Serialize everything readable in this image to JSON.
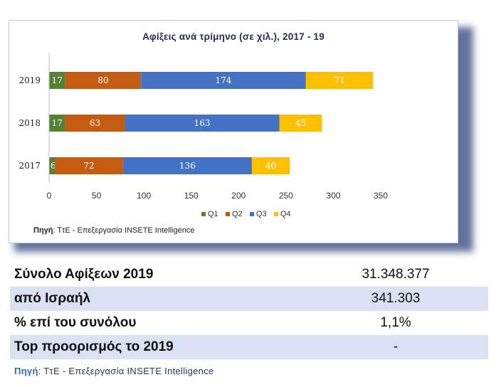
{
  "chart_data": {
    "type": "bar",
    "orientation": "horizontal",
    "stacked": true,
    "title": "Αφίξεις ανά τρίμηνο (σε χιλ.), 2017 - 19",
    "categories": [
      "2019",
      "2018",
      "2017"
    ],
    "series": [
      {
        "name": "Q1",
        "values": [
          17,
          17,
          6
        ],
        "color": "#548235"
      },
      {
        "name": "Q2",
        "values": [
          80,
          63,
          72
        ],
        "color": "#c55a11"
      },
      {
        "name": "Q3",
        "values": [
          174,
          163,
          136
        ],
        "color": "#4472c4"
      },
      {
        "name": "Q4",
        "values": [
          71,
          45,
          40
        ],
        "color": "#ffc000"
      }
    ],
    "xlim": [
      0,
      350
    ],
    "xticks": [
      "0",
      "50",
      "100",
      "150",
      "200",
      "250",
      "300",
      "350"
    ],
    "legend_position": "bottom",
    "grid": false
  },
  "chart_source": {
    "label": "Πηγή",
    "text": ": ΤτΕ - Επεξεργασία INSETE Intelligence"
  },
  "stats": {
    "rows": [
      {
        "label": "Σύνολο Αφίξεων 2019",
        "value": "31.348.377"
      },
      {
        "label": "από Ισραήλ",
        "value": "341.303"
      },
      {
        "label": "% επί του συνόλου",
        "value": "1,1%"
      },
      {
        "label": "Top προορισμός το 2019",
        "value": "-"
      }
    ]
  },
  "footer_source": {
    "label": "Πηγή",
    "text": ": ΤτΕ - Επεξεργασία INSETE Intelligence"
  }
}
